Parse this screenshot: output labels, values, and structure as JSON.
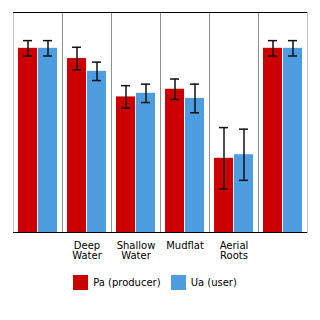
{
  "chart_data": {
    "type": "bar",
    "categories": [
      null,
      "Deep\nWater",
      "Shallow\nWater",
      "Mudflat",
      "Aerial\nRoots",
      null
    ],
    "series": [
      {
        "name": "Pa (producer)",
        "color": "#cc0000",
        "values": [
          0.96,
          0.94,
          0.865,
          0.88,
          0.745,
          0.96
        ],
        "errors": [
          0.015,
          0.022,
          0.022,
          0.02,
          0.06,
          0.015
        ]
      },
      {
        "name": "Ua (user)",
        "color": "#4d9de0",
        "values": [
          0.96,
          0.915,
          0.872,
          0.862,
          0.752,
          0.96
        ],
        "errors": [
          0.015,
          0.018,
          0.018,
          0.028,
          0.05,
          0.015
        ]
      }
    ],
    "ylim": [
      0.6,
      1.03
    ],
    "yticks": [],
    "tick_labels": "x",
    "legend": "bottom"
  }
}
